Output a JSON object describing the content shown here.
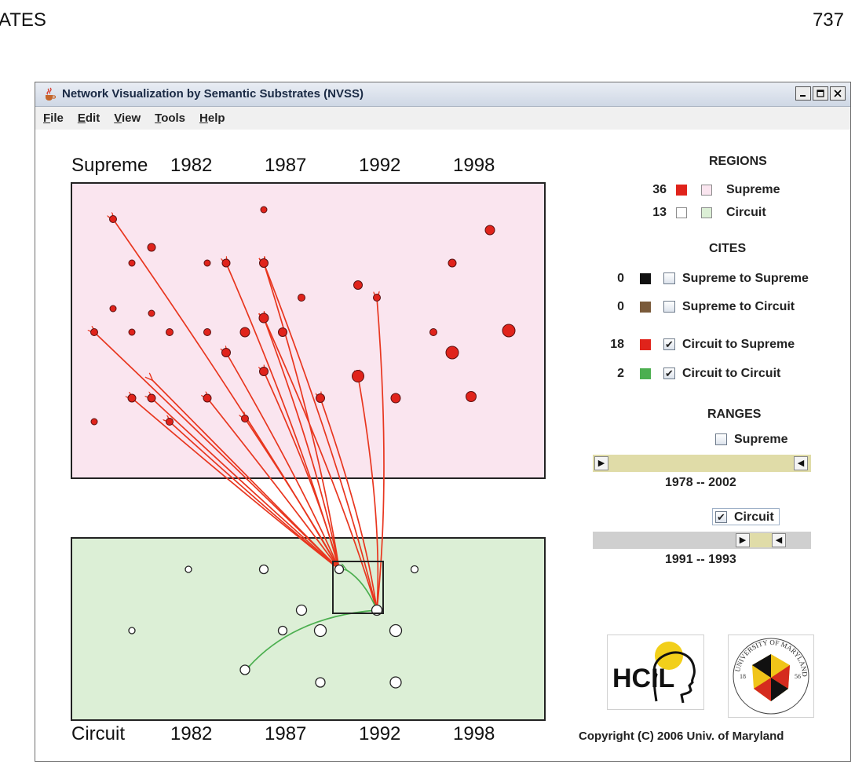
{
  "page": {
    "running_head_left": "ATES",
    "page_number": "737"
  },
  "window": {
    "title": "Network Visualization by Semantic Substrates (NVSS)",
    "menu": [
      "File",
      "Edit",
      "View",
      "Tools",
      "Help"
    ],
    "controls": [
      "minimize",
      "maximize",
      "close"
    ]
  },
  "regions_view": {
    "supreme_label": "Supreme",
    "circuit_label": "Circuit",
    "year_ticks": [
      "1982",
      "1987",
      "1992",
      "1998"
    ],
    "colors": {
      "supreme_bg": "#fae5ef",
      "circuit_bg": "#dcefd6",
      "supreme_node": "#e0231b",
      "circuit_node": "#ffffff",
      "circuit_to_supreme_edge": "#e8361f",
      "circuit_to_circuit_edge": "#4caf50"
    }
  },
  "legend": {
    "regions_title": "REGIONS",
    "regions": [
      {
        "count": "36",
        "color": "#e0231b",
        "label": "Supreme",
        "checked": false
      },
      {
        "count": "13",
        "color": "#ffffff",
        "label": "Circuit",
        "checked": false
      }
    ],
    "cites_title": "CITES",
    "cites": [
      {
        "count": "0",
        "color": "#111111",
        "label": "Supreme to Supreme",
        "checked": false
      },
      {
        "count": "0",
        "color": "#7a5a3a",
        "label": "Supreme to Circuit",
        "checked": false
      },
      {
        "count": "18",
        "color": "#e0231b",
        "label": "Circuit to Supreme",
        "checked": true
      },
      {
        "count": "2",
        "color": "#4caf50",
        "label": "Circuit to Circuit",
        "checked": true
      }
    ],
    "ranges_title": "RANGES",
    "ranges": [
      {
        "label": "Supreme",
        "checked": false,
        "from": "1978",
        "to": "2002",
        "range_text": "1978  --  2002"
      },
      {
        "label": "Circuit",
        "checked": true,
        "from": "1991",
        "to": "1993",
        "range_text": "1991  --  1993"
      }
    ],
    "check_mark": "✔"
  },
  "footer": {
    "logo_hcil": "HCIL",
    "logo_umd_ring": "UNIVERSITY OF MARYLAND",
    "logo_umd_years": [
      "18",
      "56"
    ],
    "copyright": "Copyright (C) 2006   Univ. of Maryland"
  }
}
